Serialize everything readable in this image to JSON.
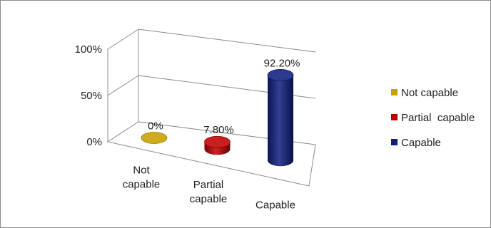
{
  "chart_data": {
    "type": "bar",
    "style": "3d-cylinder",
    "categories": [
      [
        "Not",
        "capable"
      ],
      [
        "Partial",
        "capable"
      ],
      [
        "Capable"
      ]
    ],
    "values": [
      0,
      7.8,
      92.2
    ],
    "data_labels": [
      "0%",
      "7.80%",
      "92.20%"
    ],
    "y_ticks": [
      "0%",
      "50%",
      "100%"
    ],
    "ylim": [
      0,
      100
    ],
    "legend": {
      "position": "right",
      "entries": [
        "Not capable",
        "Partial  capable",
        "Capable"
      ]
    },
    "colors": [
      "#c9a000",
      "#c00000",
      "#0f1f80"
    ],
    "grid": true
  }
}
